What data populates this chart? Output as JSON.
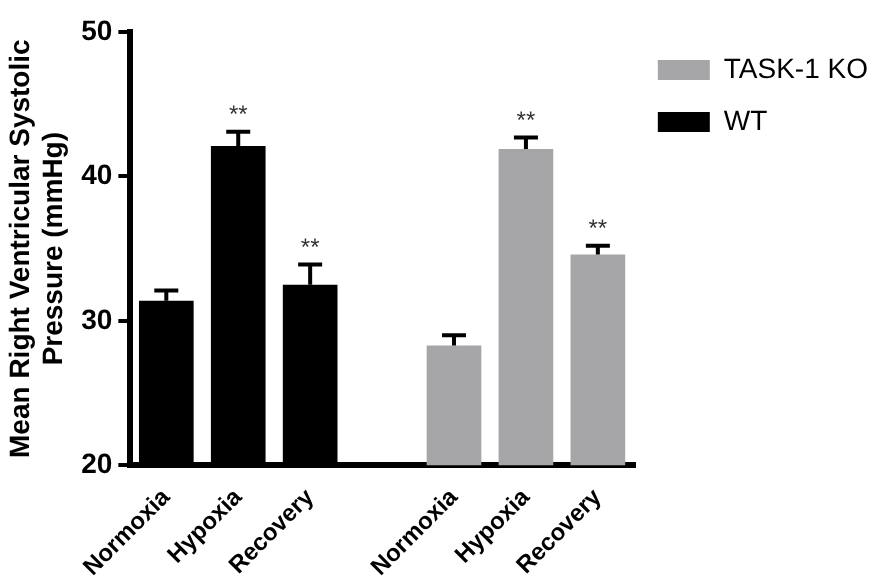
{
  "chart_data": {
    "type": "bar",
    "ylabel": "Mean Right Ventricular Systolic Pressure (mmHg)",
    "categories": [
      "Normoxia",
      "Hypoxia",
      "Recovery",
      null,
      "Normoxia",
      "Hypoxia",
      "Recovery"
    ],
    "series": [
      {
        "name": "TASK-1 KO",
        "color": "#a6a6a8",
        "values": [
          null,
          null,
          null,
          null,
          28.3,
          41.9,
          34.6
        ],
        "errors": [
          null,
          null,
          null,
          null,
          0.7,
          0.8,
          0.6
        ],
        "value_labels": [
          null,
          null,
          null,
          null,
          null,
          "**",
          "**"
        ]
      },
      {
        "name": "WT",
        "color": "#000000",
        "values": [
          31.4,
          42.1,
          32.5,
          null,
          null,
          null,
          null
        ],
        "errors": [
          0.7,
          1.0,
          1.4,
          null,
          null,
          null,
          null
        ],
        "value_labels": [
          null,
          "**",
          "**",
          null,
          null,
          null,
          null
        ]
      }
    ],
    "ylim": [
      20,
      50
    ],
    "yticks": [
      20,
      30,
      40,
      50
    ],
    "grid": false,
    "legend": "top right"
  }
}
